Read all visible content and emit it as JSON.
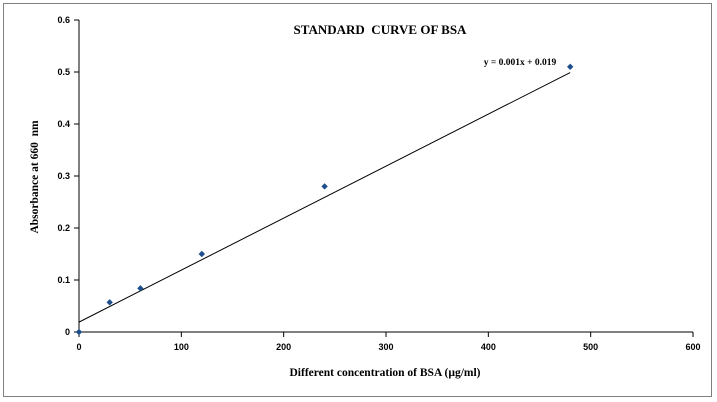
{
  "chart_data": {
    "type": "scatter",
    "title": "STANDARD  CURVE OF BSA",
    "xlabel": "Different concentration of BSA (µg/ml)",
    "ylabel": "Absorbance at 660  nm",
    "xlim": [
      0,
      600
    ],
    "ylim": [
      0,
      0.6
    ],
    "x_ticks": [
      "0",
      "100",
      "200",
      "300",
      "400",
      "500",
      "600"
    ],
    "y_ticks": [
      "0",
      "0.1",
      "0.2",
      "0.3",
      "0.4",
      "0.5",
      "0.6"
    ],
    "grid": false,
    "legend": "none",
    "series": [
      {
        "x": [
          0,
          30,
          60,
          120,
          240,
          480
        ],
        "y": [
          0,
          0.057,
          0.084,
          0.15,
          0.28,
          0.51
        ],
        "marker": "diamond",
        "color": "#1f4e8c"
      }
    ],
    "trendline": {
      "slope": 0.001,
      "intercept": 0.019,
      "x_range": [
        0,
        480
      ],
      "equation": "y = 0.001x + 0.019"
    }
  }
}
